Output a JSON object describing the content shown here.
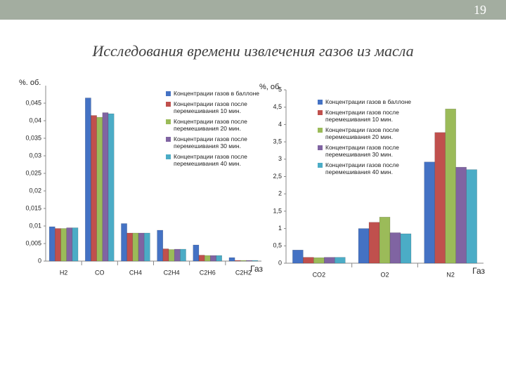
{
  "slide": {
    "page": "19",
    "title": "Исследования времени извлечения газов из масла"
  },
  "chart_data": [
    {
      "type": "bar",
      "ylabel": "%. об.",
      "xlabel": "Газ",
      "categories": [
        "H2",
        "CO",
        "CH4",
        "C2H4",
        "C2H6",
        "C2H2"
      ],
      "ylim": [
        0,
        0.05
      ],
      "yticks": [
        0,
        {
          "value": 0.005,
          "label": "0,005"
        },
        {
          "value": 0.01,
          "label": "0,01"
        },
        {
          "value": 0.015,
          "label": "0,015"
        },
        {
          "value": 0.02,
          "label": "0,02"
        },
        {
          "value": 0.025,
          "label": "0,025"
        },
        {
          "value": 0.03,
          "label": "0,03"
        },
        {
          "value": 0.035,
          "label": "0,035"
        },
        {
          "value": 0.04,
          "label": "0,04"
        },
        {
          "value": 0.045,
          "label": "0,045"
        }
      ],
      "legend": "top-right",
      "series": [
        {
          "name": "Концентрации газов в баллоне",
          "color": "#4472c4",
          "values": [
            0.0098,
            0.0465,
            0.0107,
            0.0088,
            0.0046,
            0.001
          ]
        },
        {
          "name": "Концентрации газов после перемешивания 10 мин.",
          "color": "#c0504d",
          "values": [
            0.0093,
            0.0415,
            0.008,
            0.0035,
            0.0017,
            0.0002
          ]
        },
        {
          "name": "Концентрации газов после перемешивания 20 мин.",
          "color": "#9bbb59",
          "values": [
            0.0093,
            0.041,
            0.008,
            0.0033,
            0.0016,
            0.0002
          ]
        },
        {
          "name": "Концентрации газов после перемешивания 30 мин.",
          "color": "#8064a2",
          "values": [
            0.0095,
            0.0423,
            0.008,
            0.0034,
            0.0016,
            0.0002
          ]
        },
        {
          "name": "Концентрации газов после перемешивания 40 мин.",
          "color": "#4bacc6",
          "values": [
            0.0095,
            0.042,
            0.008,
            0.0034,
            0.0016,
            0.0002
          ]
        }
      ]
    },
    {
      "type": "bar",
      "ylabel": "%, об.",
      "xlabel": "Газ",
      "categories": [
        "CO2",
        "O2",
        "N2"
      ],
      "ylim": [
        0,
        5
      ],
      "yticks": [
        0,
        {
          "value": 0.5,
          "label": "0,5"
        },
        1,
        {
          "value": 1.5,
          "label": "1,5"
        },
        2,
        {
          "value": 2.5,
          "label": "2,5"
        },
        3,
        {
          "value": 3.5,
          "label": "3,5"
        },
        4,
        {
          "value": 4.5,
          "label": "4,5"
        },
        5
      ],
      "legend": "top-left",
      "series": [
        {
          "name": "Концентрации газов в баллоне",
          "color": "#4472c4",
          "values": [
            0.38,
            1.0,
            2.92
          ]
        },
        {
          "name": "Концентрации газов после перемешивания 10 мин.",
          "color": "#c0504d",
          "values": [
            0.17,
            1.18,
            3.77
          ]
        },
        {
          "name": "Концентрации газов после перемешивания 20 мин.",
          "color": "#9bbb59",
          "values": [
            0.16,
            1.33,
            4.45
          ]
        },
        {
          "name": "Концентрации газов после перемешивания 30 мин.",
          "color": "#8064a2",
          "values": [
            0.17,
            0.88,
            2.77
          ]
        },
        {
          "name": "Концентрации газов после перемешивания 40 мин.",
          "color": "#4bacc6",
          "values": [
            0.17,
            0.85,
            2.7
          ]
        }
      ]
    }
  ]
}
